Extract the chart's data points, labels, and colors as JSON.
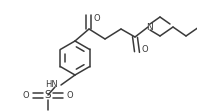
{
  "bg_color": "#ffffff",
  "line_color": "#3a3a3a",
  "line_width": 1.1,
  "font_size": 6.0,
  "figsize": [
    1.97,
    1.12
  ],
  "dpi": 100,
  "xlim": [
    0,
    197
  ],
  "ylim": [
    0,
    112
  ]
}
